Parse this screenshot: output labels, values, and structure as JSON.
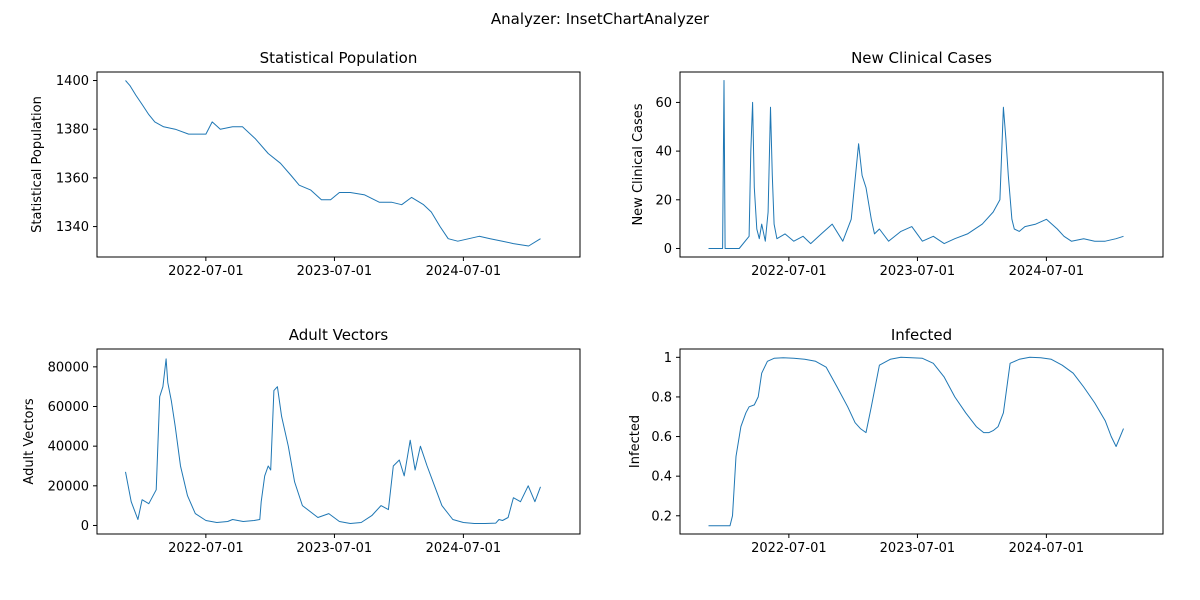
{
  "figure": {
    "suptitle": "Analyzer: InsetChartAnalyzer"
  },
  "chart_data": [
    {
      "type": "line",
      "title": "Statistical Population",
      "ylabel": "Statistical Population",
      "xlabel": "",
      "x_ticks": [
        "2022-07-01",
        "2023-07-01",
        "2024-07-01"
      ],
      "y_ticks": [
        1340,
        1360,
        1380,
        1400
      ],
      "xlim": [
        "2021-08-26",
        "2025-05-28"
      ],
      "ylim": [
        1327.5,
        1403.5
      ],
      "color": "#1f77b4",
      "grid": false,
      "series": [
        {
          "x": [
            "2021-11-15",
            "2021-11-27",
            "2021-12-14",
            "2022-01-02",
            "2022-01-20",
            "2022-02-06",
            "2022-03-03",
            "2022-04-05",
            "2022-05-13",
            "2022-06-04",
            "2022-07-01",
            "2022-07-19",
            "2022-08-11",
            "2022-09-15",
            "2022-10-13",
            "2022-11-19",
            "2022-12-25",
            "2023-01-29",
            "2023-02-28",
            "2023-03-23",
            "2023-04-25",
            "2023-05-25",
            "2023-06-20",
            "2023-07-15",
            "2023-08-15",
            "2023-09-25",
            "2023-11-05",
            "2023-12-10",
            "2024-01-08",
            "2024-02-05",
            "2024-03-10",
            "2024-04-01",
            "2024-04-26",
            "2024-05-19",
            "2024-06-15",
            "2024-08-15",
            "2024-09-15",
            "2024-10-20",
            "2024-11-20",
            "2025-01-02",
            "2025-02-05"
          ],
          "y": [
            1400,
            1398,
            1394,
            1390,
            1386,
            1383,
            1381,
            1380,
            1378,
            1378,
            1378,
            1383,
            1380,
            1381,
            1381,
            1376,
            1370,
            1366,
            1361,
            1357,
            1355,
            1351,
            1351,
            1354,
            1354,
            1353,
            1350,
            1350,
            1349,
            1352,
            1349,
            1346,
            1340,
            1335,
            1334,
            1336,
            1335,
            1334,
            1333,
            1332,
            1335
          ]
        }
      ]
    },
    {
      "type": "line",
      "title": "New Clinical Cases",
      "ylabel": "New Clinical Cases",
      "xlabel": "",
      "x_ticks": [
        "2022-07-01",
        "2023-07-01",
        "2024-07-01"
      ],
      "y_ticks": [
        0,
        20,
        40,
        60
      ],
      "xlim": [
        "2021-08-26",
        "2025-05-28"
      ],
      "ylim": [
        -3.5,
        72.5
      ],
      "color": "#1f77b4",
      "grid": false,
      "series": [
        {
          "x": [
            "2021-11-15",
            "2021-12-25",
            "2021-12-29",
            "2022-01-01",
            "2022-01-04",
            "2022-01-10",
            "2022-02-10",
            "2022-03-10",
            "2022-03-15",
            "2022-03-20",
            "2022-03-25",
            "2022-04-01",
            "2022-04-08",
            "2022-04-15",
            "2022-04-25",
            "2022-05-03",
            "2022-05-10",
            "2022-05-15",
            "2022-05-20",
            "2022-05-28",
            "2022-06-20",
            "2022-07-15",
            "2022-08-10",
            "2022-09-01",
            "2022-10-01",
            "2022-11-01",
            "2022-12-01",
            "2022-12-25",
            "2023-01-15",
            "2023-01-25",
            "2023-02-05",
            "2023-02-20",
            "2023-03-01",
            "2023-03-15",
            "2023-04-10",
            "2023-05-15",
            "2023-06-15",
            "2023-07-15",
            "2023-08-15",
            "2023-09-15",
            "2023-10-15",
            "2023-11-20",
            "2024-01-01",
            "2024-02-01",
            "2024-02-20",
            "2024-03-01",
            "2024-03-08",
            "2024-03-15",
            "2024-03-25",
            "2024-04-01",
            "2024-04-15",
            "2024-05-01",
            "2024-06-01",
            "2024-07-01",
            "2024-08-01",
            "2024-08-20",
            "2024-09-10",
            "2024-10-15",
            "2024-11-15",
            "2024-12-15",
            "2025-01-15",
            "2025-02-05"
          ],
          "y": [
            0,
            0,
            69,
            0,
            0,
            0,
            0,
            5,
            40,
            60,
            25,
            8,
            4,
            10,
            3,
            15,
            58,
            30,
            10,
            4,
            6,
            3,
            5,
            2,
            6,
            10,
            3,
            12,
            43,
            30,
            25,
            12,
            6,
            8,
            3,
            7,
            9,
            3,
            5,
            2,
            4,
            6,
            10,
            15,
            20,
            58,
            45,
            30,
            12,
            8,
            7,
            9,
            10,
            12,
            8,
            5,
            3,
            4,
            3,
            3,
            4,
            5
          ]
        }
      ]
    },
    {
      "type": "line",
      "title": "Adult Vectors",
      "ylabel": "Adult Vectors",
      "xlabel": "",
      "x_ticks": [
        "2022-07-01",
        "2023-07-01",
        "2024-07-01"
      ],
      "y_ticks": [
        0,
        20000,
        40000,
        60000,
        80000
      ],
      "xlim": [
        "2021-08-26",
        "2025-05-28"
      ],
      "ylim": [
        -4300,
        89000
      ],
      "color": "#1f77b4",
      "grid": false,
      "series": [
        {
          "x": [
            "2021-11-15",
            "2021-12-01",
            "2021-12-20",
            "2022-01-01",
            "2022-01-20",
            "2022-02-10",
            "2022-02-20",
            "2022-03-01",
            "2022-03-10",
            "2022-03-15",
            "2022-03-25",
            "2022-04-05",
            "2022-04-20",
            "2022-05-10",
            "2022-06-01",
            "2022-07-01",
            "2022-08-01",
            "2022-09-01",
            "2022-09-15",
            "2022-10-15",
            "2022-11-15",
            "2022-12-01",
            "2022-12-05",
            "2022-12-15",
            "2022-12-25",
            "2023-01-01",
            "2023-01-10",
            "2023-01-20",
            "2023-02-01",
            "2023-02-20",
            "2023-03-10",
            "2023-04-01",
            "2023-05-15",
            "2023-06-15",
            "2023-07-15",
            "2023-08-15",
            "2023-09-15",
            "2023-10-15",
            "2023-11-10",
            "2023-12-01",
            "2023-12-15",
            "2024-01-01",
            "2024-01-15",
            "2024-02-01",
            "2024-02-15",
            "2024-03-01",
            "2024-03-20",
            "2024-04-10",
            "2024-05-01",
            "2024-06-01",
            "2024-07-01",
            "2024-08-01",
            "2024-09-01",
            "2024-10-01",
            "2024-10-10",
            "2024-10-20",
            "2024-11-05",
            "2024-11-20",
            "2024-12-10",
            "2025-01-01",
            "2025-01-20",
            "2025-02-05"
          ],
          "y": [
            27000,
            12000,
            3000,
            13000,
            11000,
            18000,
            65000,
            70000,
            84000,
            72000,
            63000,
            50000,
            30000,
            15000,
            6000,
            2500,
            1500,
            2000,
            3000,
            2000,
            2500,
            3000,
            12000,
            25000,
            30000,
            28000,
            68000,
            70000,
            55000,
            40000,
            22000,
            10000,
            4000,
            6000,
            2000,
            1000,
            1500,
            5000,
            10000,
            8000,
            30000,
            33000,
            25000,
            43000,
            28000,
            40000,
            30000,
            20000,
            10000,
            3000,
            1500,
            1000,
            1000,
            1200,
            3000,
            2500,
            4000,
            14000,
            12000,
            20000,
            12000,
            19500
          ]
        }
      ]
    },
    {
      "type": "line",
      "title": "Infected",
      "ylabel": "Infected",
      "xlabel": "",
      "x_ticks": [
        "2022-07-01",
        "2023-07-01",
        "2024-07-01"
      ],
      "y_ticks": [
        0.2,
        0.4,
        0.6,
        0.8,
        1.0
      ],
      "xlim": [
        "2021-08-26",
        "2025-05-28"
      ],
      "ylim": [
        0.108,
        1.042
      ],
      "color": "#1f77b4",
      "grid": false,
      "series": [
        {
          "x": [
            "2021-11-15",
            "2022-01-15",
            "2022-01-22",
            "2022-02-01",
            "2022-02-15",
            "2022-03-01",
            "2022-03-10",
            "2022-03-25",
            "2022-04-05",
            "2022-04-15",
            "2022-05-01",
            "2022-05-20",
            "2022-06-15",
            "2022-07-15",
            "2022-08-15",
            "2022-09-15",
            "2022-10-15",
            "2022-11-15",
            "2022-12-15",
            "2023-01-05",
            "2023-01-20",
            "2023-02-05",
            "2023-02-20",
            "2023-03-15",
            "2023-04-15",
            "2023-05-15",
            "2023-06-15",
            "2023-07-15",
            "2023-08-15",
            "2023-09-15",
            "2023-10-15",
            "2023-11-15",
            "2023-12-15",
            "2024-01-05",
            "2024-01-20",
            "2024-02-01",
            "2024-02-15",
            "2024-03-01",
            "2024-03-20",
            "2024-04-15",
            "2024-05-15",
            "2024-06-15",
            "2024-07-15",
            "2024-08-15",
            "2024-09-15",
            "2024-10-15",
            "2024-11-15",
            "2024-12-15",
            "2025-01-01",
            "2025-01-15",
            "2025-02-05"
          ],
          "y": [
            0.15,
            0.15,
            0.2,
            0.5,
            0.65,
            0.72,
            0.75,
            0.76,
            0.8,
            0.92,
            0.98,
            0.995,
            0.998,
            0.995,
            0.99,
            0.98,
            0.95,
            0.85,
            0.75,
            0.67,
            0.64,
            0.62,
            0.75,
            0.96,
            0.99,
            1.0,
            0.998,
            0.995,
            0.97,
            0.9,
            0.8,
            0.72,
            0.65,
            0.62,
            0.62,
            0.63,
            0.65,
            0.72,
            0.97,
            0.99,
            1.0,
            0.998,
            0.99,
            0.96,
            0.92,
            0.85,
            0.77,
            0.68,
            0.6,
            0.55,
            0.64
          ]
        }
      ]
    }
  ]
}
